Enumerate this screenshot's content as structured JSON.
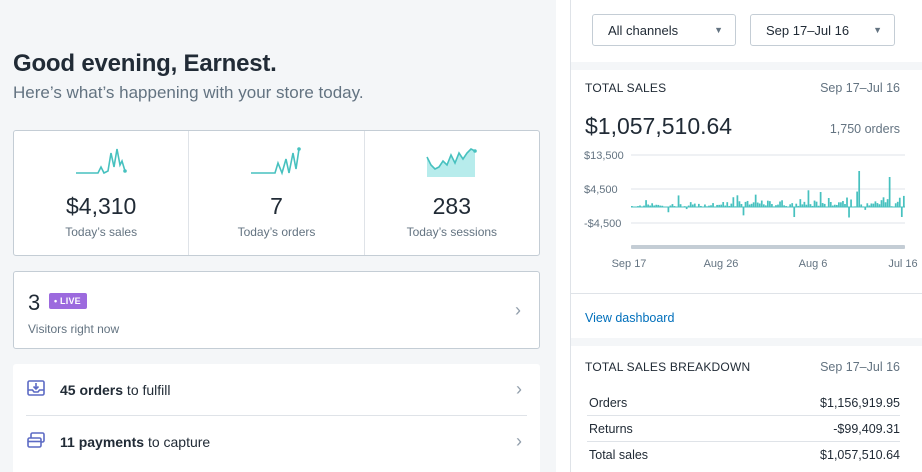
{
  "greeting": {
    "title": "Good evening, Earnest.",
    "subtitle": "Here’s what’s happening with your store today."
  },
  "stats": [
    {
      "value": "$4,310",
      "label": "Today’s sales",
      "icon": "sparkline-sales-icon"
    },
    {
      "value": "7",
      "label": "Today’s orders",
      "icon": "sparkline-orders-icon"
    },
    {
      "value": "283",
      "label": "Today’s sessions",
      "icon": "sparkline-sessions-icon"
    }
  ],
  "visitors": {
    "count": "3",
    "badge": "• LIVE",
    "label": "Visitors right now"
  },
  "tasks": [
    {
      "bold": "45 orders",
      "rest": " to fulfill",
      "icon": "inbox-download-icon"
    },
    {
      "bold": "11 payments",
      "rest": " to capture",
      "icon": "credit-cards-icon"
    }
  ],
  "filters": {
    "channel": "All channels",
    "range": "Sep 17–Jul 16"
  },
  "total_sales": {
    "title": "TOTAL SALES",
    "range": "Sep 17–Jul 16",
    "amount": "$1,057,510.64",
    "orders": "1,750 orders",
    "link": "View dashboard"
  },
  "chart_data": {
    "type": "bar",
    "y_ticks": [
      "$13,500",
      "$4,500",
      "-$4,500"
    ],
    "x_ticks": [
      "Sep 17",
      "Aug 26",
      "Aug 6",
      "Jul 16"
    ],
    "ylim": [
      -4500,
      13500
    ],
    "grid": true,
    "accent": "#47c1bf"
  },
  "breakdown": {
    "title": "TOTAL SALES BREAKDOWN",
    "range": "Sep 17–Jul 16",
    "rows": [
      {
        "label": "Orders",
        "value": "$1,156,919.95"
      },
      {
        "label": "Returns",
        "value": "-$99,409.31"
      },
      {
        "label": "Total sales",
        "value": "$1,057,510.64"
      }
    ]
  },
  "colors": {
    "teal": "#47c1bf",
    "live": "#9c6ade",
    "link": "#006fbb"
  }
}
